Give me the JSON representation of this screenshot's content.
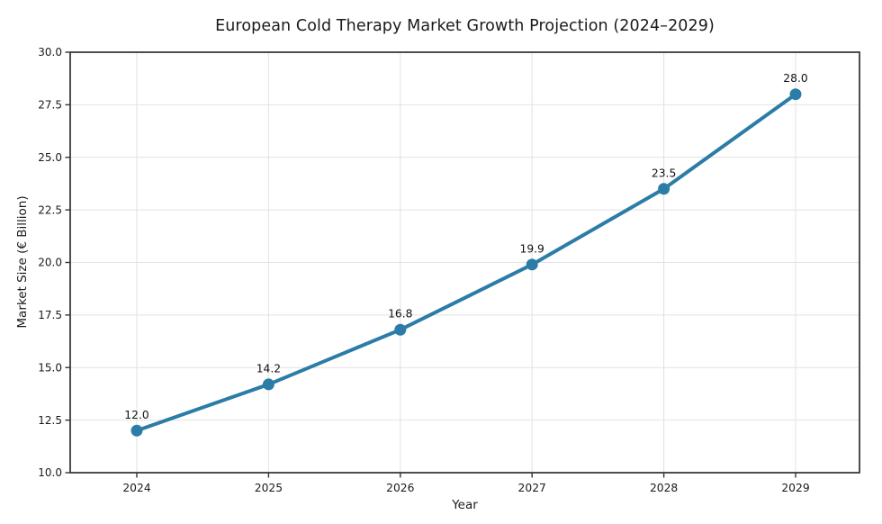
{
  "chart_data": {
    "type": "line",
    "title": "European Cold Therapy Market Growth Projection (2024–2029)",
    "xlabel": "Year",
    "ylabel": "Market Size (€ Billion)",
    "x": [
      2024,
      2025,
      2026,
      2027,
      2028,
      2029
    ],
    "series": [
      {
        "name": "Market Size",
        "values": [
          12.0,
          14.2,
          16.8,
          19.9,
          23.5,
          28.0
        ],
        "point_labels": [
          "12.0",
          "14.2",
          "16.8",
          "19.9",
          "23.5",
          "28.0"
        ]
      }
    ],
    "ylim": [
      10.0,
      30.0
    ],
    "yticks": [
      10.0,
      12.5,
      15.0,
      17.5,
      20.0,
      22.5,
      25.0,
      27.5,
      30.0
    ],
    "ytick_labels": [
      "10.0",
      "12.5",
      "15.0",
      "17.5",
      "20.0",
      "22.5",
      "25.0",
      "27.5",
      "30.0"
    ],
    "xtick_labels": [
      "2024",
      "2025",
      "2026",
      "2027",
      "2028",
      "2029"
    ],
    "grid": true,
    "legend_position": "none",
    "marker": "circle",
    "colors": {
      "line": "#2B7CA7",
      "marker": "#2B7CA7",
      "grid": "#e2e2e2",
      "spine": "#3a3a3a",
      "tick": "#333333",
      "text": "#1a1a1a"
    }
  }
}
